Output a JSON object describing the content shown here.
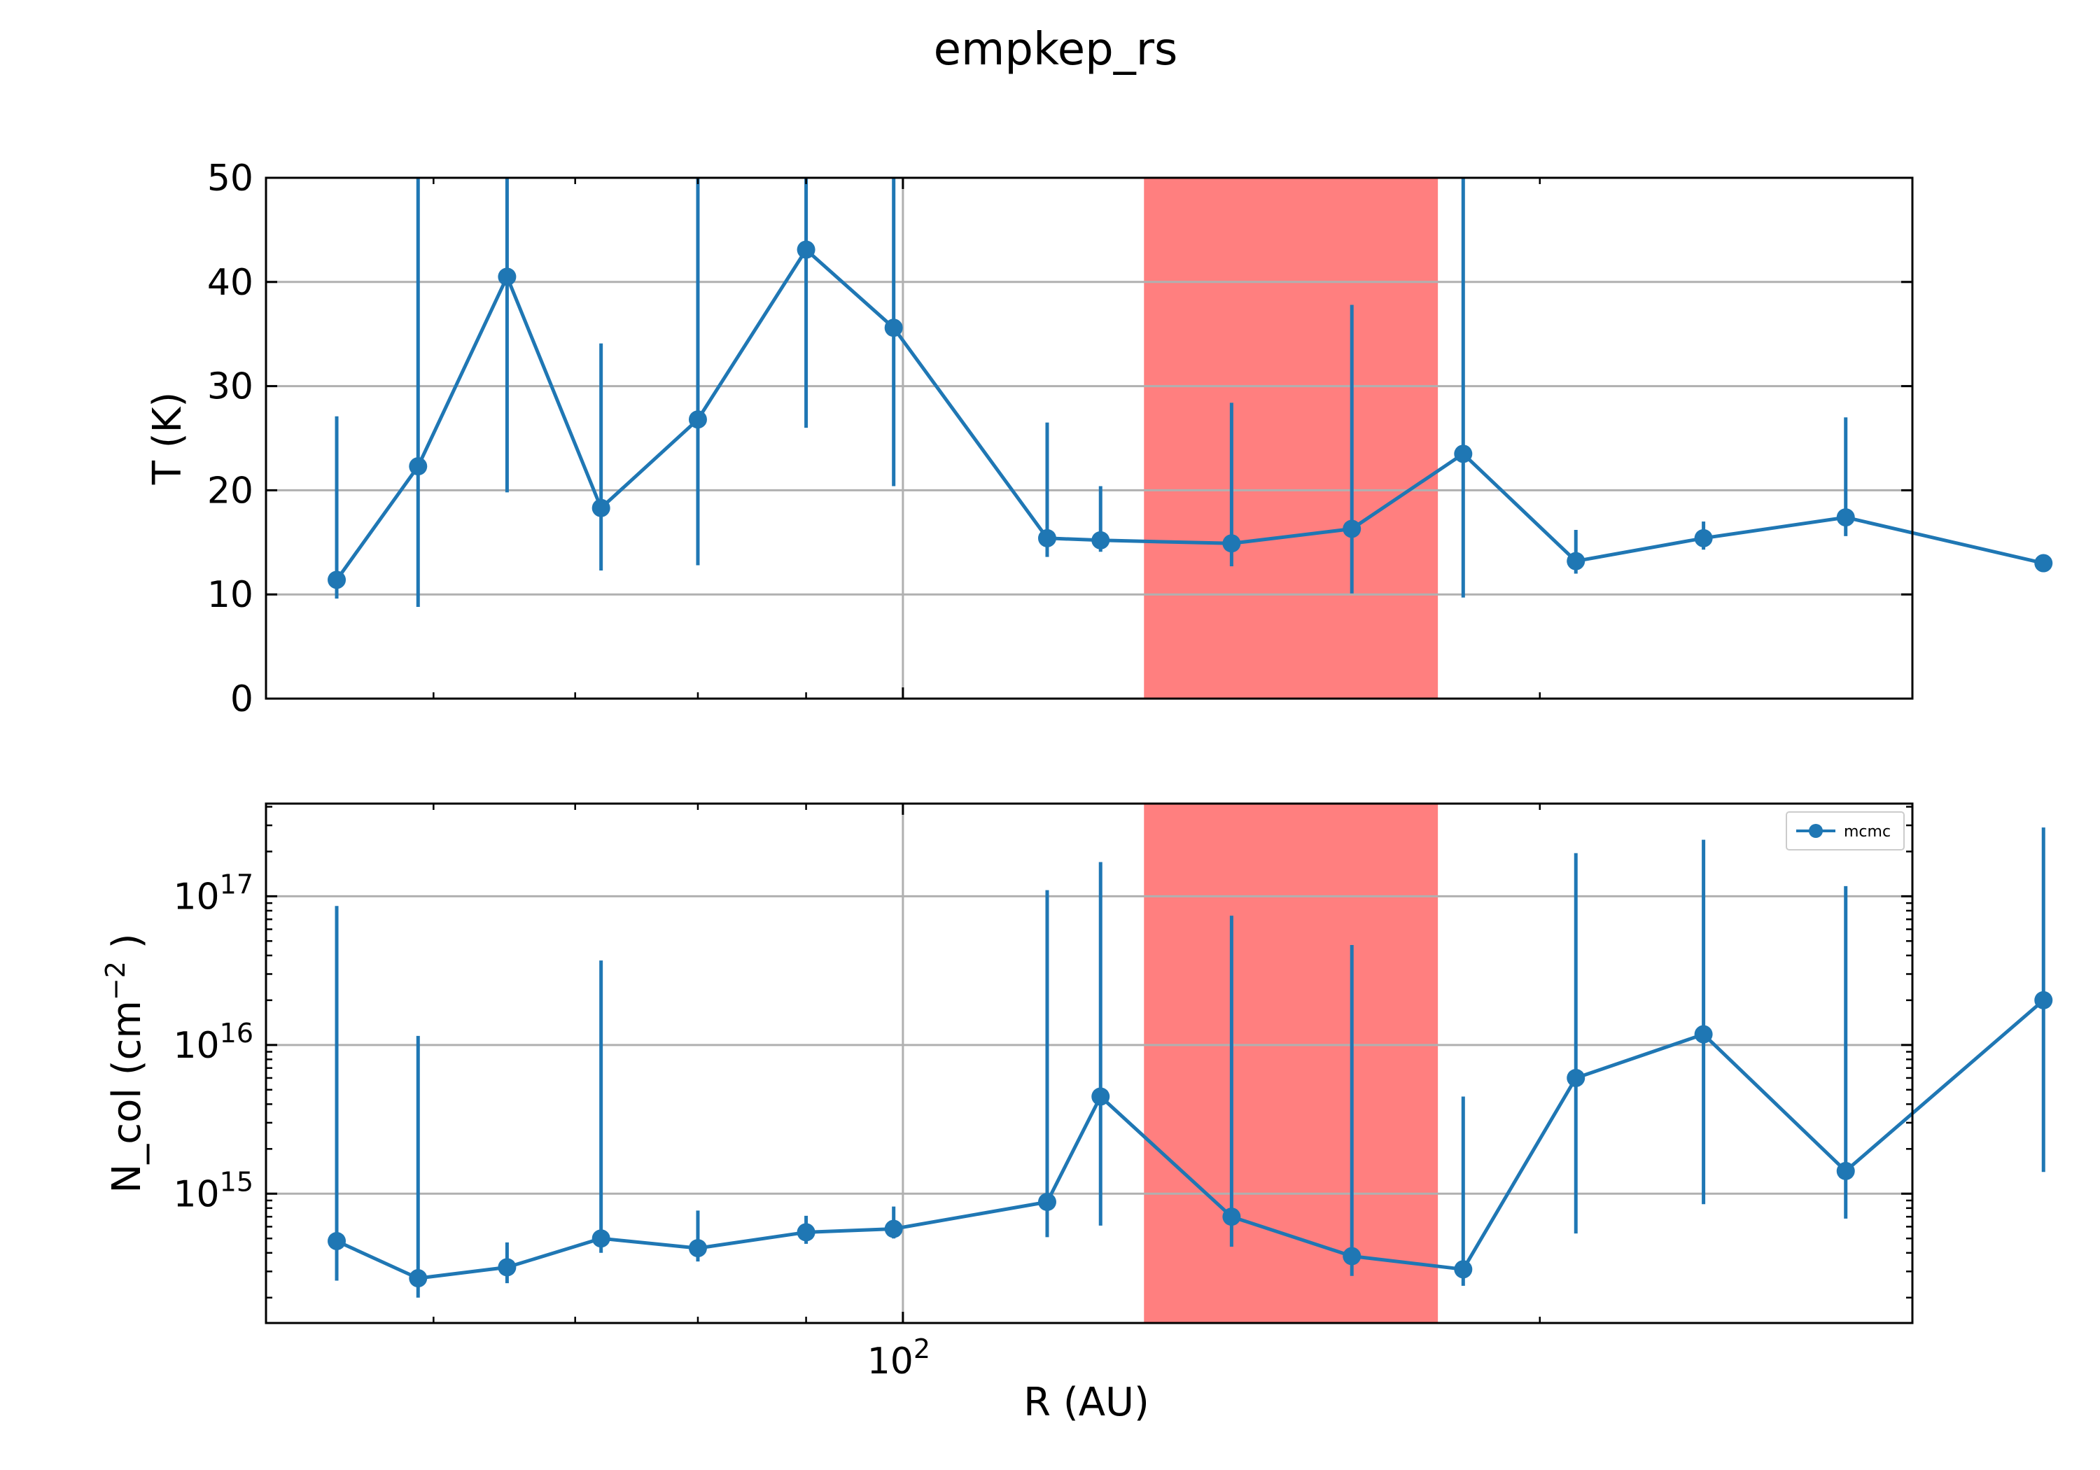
{
  "figure": {
    "title": "empkep_rs"
  },
  "shared_x": {
    "label": "R (AU)",
    "scale": "log",
    "range": [
      50,
      300
    ],
    "major_ticks": [
      {
        "value": 100,
        "base": "10",
        "exp": "2"
      }
    ],
    "minor_ticks": [
      60,
      70,
      80,
      90,
      200,
      300
    ]
  },
  "highlight": {
    "x_start": 130,
    "x_end": 179,
    "color": "#ff7f7f"
  },
  "legend": {
    "entries": [
      {
        "label": "mcmc"
      }
    ],
    "placement": "top-right"
  },
  "colors": {
    "series": "#1f77b4",
    "grid": "#b0b0b0"
  },
  "chart_data": [
    {
      "type": "line",
      "panel": "top",
      "ylabel": "T (K)",
      "yscale": "linear",
      "ylim": [
        0,
        50
      ],
      "y_ticks": [
        {
          "value": 0,
          "label": "0"
        },
        {
          "value": 10,
          "label": "10"
        },
        {
          "value": 20,
          "label": "20"
        },
        {
          "value": 30,
          "label": "30"
        },
        {
          "value": 40,
          "label": "40"
        },
        {
          "value": 50,
          "label": "50"
        }
      ],
      "grid": true,
      "series": [
        {
          "x": [
            54,
            59,
            65,
            72,
            80,
            90,
            99,
            117,
            124,
            143,
            163,
            184,
            208,
            239,
            279,
            346
          ],
          "y": [
            11.4,
            22.3,
            40.5,
            18.3,
            26.8,
            43.1,
            35.6,
            15.4,
            15.2,
            14.9,
            16.3,
            23.5,
            13.2,
            15.4,
            17.4,
            13.0
          ],
          "yerr_low": [
            9.6,
            8.8,
            19.8,
            12.3,
            12.8,
            26.0,
            20.4,
            13.6,
            14.1,
            12.7,
            10.1,
            9.7,
            12.0,
            14.3,
            15.6,
            13.0
          ],
          "yerr_high": [
            27.1,
            50,
            50,
            34.1,
            50,
            50,
            50,
            26.5,
            20.4,
            28.4,
            37.8,
            50,
            16.2,
            17.0,
            27.0,
            13.0
          ]
        }
      ]
    },
    {
      "type": "line",
      "panel": "bottom",
      "ylabel": "N_col (cm",
      "ylabel_sup": "−2",
      "ylabel_end": " )",
      "yscale": "log",
      "ylim": [
        135000000000000.0,
        4.2e+17
      ],
      "y_ticks": [
        {
          "value": 1000000000000000.0,
          "base": "10",
          "exp": "15"
        },
        {
          "value": 1e+16,
          "base": "10",
          "exp": "16"
        },
        {
          "value": 1e+17,
          "base": "10",
          "exp": "17"
        }
      ],
      "grid": true,
      "series": [
        {
          "name": "mcmc",
          "x": [
            54,
            59,
            65,
            72,
            80,
            90,
            99,
            117,
            124,
            143,
            163,
            184,
            208,
            239,
            279,
            346
          ],
          "y": [
            480000000000000.0,
            270000000000000.0,
            320000000000000.0,
            500000000000000.0,
            430000000000000.0,
            550000000000000.0,
            580000000000000.0,
            880000000000000.0,
            4500000000000000.0,
            700000000000000.0,
            380000000000000.0,
            310000000000000.0,
            6000000000000000.0,
            1.18e+16,
            1420000000000000.0,
            2e+16
          ],
          "yerr_low": [
            260000000000000.0,
            200000000000000.0,
            250000000000000.0,
            400000000000000.0,
            350000000000000.0,
            460000000000000.0,
            500000000000000.0,
            510000000000000.0,
            610000000000000.0,
            440000000000000.0,
            280000000000000.0,
            240000000000000.0,
            540000000000000.0,
            850000000000000.0,
            680000000000000.0,
            1400000000000000.0
          ],
          "yerr_high": [
            8.6e+16,
            1.15e+16,
            470000000000000.0,
            3.7e+16,
            770000000000000.0,
            710000000000000.0,
            820000000000000.0,
            1.1e+17,
            1.7e+17,
            7.4e+16,
            4.7e+16,
            4500000000000000.0,
            1.95e+17,
            2.4e+17,
            1.17e+17,
            2.9e+17
          ]
        }
      ]
    }
  ]
}
